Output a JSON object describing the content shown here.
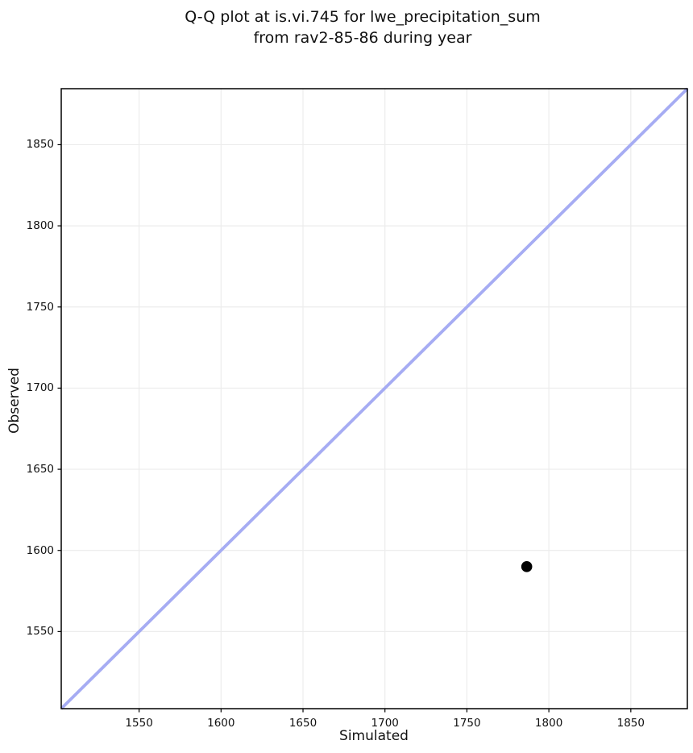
{
  "chart_data": {
    "type": "scatter",
    "title": "Q-Q plot at is.vi.745 for lwe_precipitation_sum\nfrom rav2-85-86 during year",
    "title_lines": [
      "Q-Q plot at is.vi.745 for lwe_precipitation_sum",
      "from rav2-85-86 during year"
    ],
    "xlabel": "Simulated",
    "ylabel": "Observed",
    "xlim": [
      1502.5,
      1884.5
    ],
    "ylim": [
      1502.5,
      1884.5
    ],
    "xticks": [
      1550,
      1600,
      1650,
      1700,
      1750,
      1800,
      1850
    ],
    "yticks": [
      1550,
      1600,
      1650,
      1700,
      1750,
      1800,
      1850
    ],
    "grid": true,
    "legend": false,
    "series": [
      {
        "name": "identity_line",
        "type": "line",
        "color": "#a6acf3",
        "x": [
          1502.5,
          1884.5
        ],
        "y": [
          1502.5,
          1884.5
        ]
      },
      {
        "name": "quantile_points",
        "type": "scatter",
        "color": "#000000",
        "x": [
          1786.5
        ],
        "y": [
          1590
        ]
      }
    ],
    "style": {
      "background_color": "#ffffff",
      "grid_color": "#ececec",
      "spine_color": "#000000",
      "line_color": "#a6acf3",
      "point_color": "#000000"
    }
  }
}
